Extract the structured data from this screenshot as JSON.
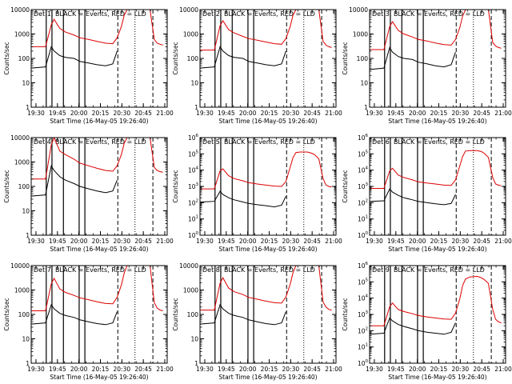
{
  "figure": {
    "start_label": "Start Time (16-May-05 19:26:40)",
    "ylabel": "Counts/sec"
  },
  "chart_data": [
    {
      "type": "line",
      "title": "Det 1, BLACK = Events, RED = LLD",
      "xlabel": "Start Time (16-May-05 19:26:40)",
      "ylabel": "Counts/sec",
      "ylim": [
        1,
        10000
      ],
      "log_y": true,
      "ytick_style": "plain",
      "x_ticks": [
        "19:30",
        "19:45",
        "20:00",
        "20:15",
        "20:30",
        "20:45",
        "21:00"
      ],
      "series": [
        {
          "name": "Events",
          "color": "#000000",
          "x": [
            0,
            10,
            14,
            16,
            20,
            24,
            30,
            34,
            40,
            46,
            52,
            57,
            60
          ],
          "y": [
            40,
            45,
            300,
            200,
            130,
            110,
            100,
            75,
            65,
            55,
            50,
            60,
            200
          ]
        },
        {
          "name": "LLD",
          "color": "#dd0000",
          "x": [
            0,
            10,
            14,
            16,
            20,
            24,
            30,
            34,
            40,
            46,
            52,
            57,
            60,
            63,
            65,
            67,
            70,
            75,
            78,
            80,
            83,
            86,
            88,
            90,
            92
          ],
          "y": [
            300,
            300,
            2400,
            4000,
            1700,
            1200,
            900,
            700,
            600,
            500,
            420,
            400,
            700,
            2000,
            6000,
            10000,
            10000,
            10000,
            10000,
            10000,
            10000,
            600,
            420,
            380,
            350
          ]
        }
      ]
    },
    {
      "type": "line",
      "title": "Det 2, BLACK = Events, RED = LLD",
      "xlabel": "Start Time (16-May-05 19:26:40)",
      "ylabel": "Counts/sec",
      "ylim": [
        1,
        10000
      ],
      "log_y": true,
      "ytick_style": "plain",
      "x_ticks": [
        "19:30",
        "19:45",
        "20:00",
        "20:15",
        "20:30",
        "20:45",
        "21:00"
      ],
      "series": [
        {
          "name": "Events",
          "color": "#000000",
          "x": [
            0,
            10,
            14,
            16,
            20,
            24,
            30,
            34,
            40,
            46,
            52,
            57,
            60
          ],
          "y": [
            40,
            45,
            300,
            200,
            130,
            110,
            100,
            75,
            65,
            55,
            50,
            60,
            200
          ]
        },
        {
          "name": "LLD",
          "color": "#dd0000",
          "x": [
            0,
            10,
            14,
            16,
            20,
            24,
            30,
            34,
            40,
            46,
            52,
            57,
            60,
            63,
            65,
            67,
            70,
            75,
            78,
            80,
            83,
            86,
            88,
            90,
            92
          ],
          "y": [
            220,
            220,
            2200,
            3500,
            1500,
            1100,
            800,
            650,
            560,
            470,
            400,
            380,
            650,
            2000,
            6000,
            10000,
            10000,
            10000,
            10000,
            10000,
            10000,
            500,
            350,
            300,
            280
          ]
        }
      ]
    },
    {
      "type": "line",
      "title": "Det 3, BLACK = Events, RED = LLD",
      "xlabel": "Start Time (16-May-05 19:26:40)",
      "ylabel": "Counts/sec",
      "ylim": [
        1,
        10000
      ],
      "log_y": true,
      "ytick_style": "plain",
      "x_ticks": [
        "19:30",
        "19:45",
        "20:00",
        "20:15",
        "20:30",
        "20:45",
        "21:00"
      ],
      "series": [
        {
          "name": "Events",
          "color": "#000000",
          "x": [
            0,
            10,
            14,
            16,
            20,
            24,
            30,
            34,
            40,
            46,
            52,
            57,
            60
          ],
          "y": [
            35,
            40,
            280,
            180,
            120,
            100,
            90,
            70,
            60,
            50,
            45,
            55,
            180
          ]
        },
        {
          "name": "LLD",
          "color": "#dd0000",
          "x": [
            0,
            10,
            14,
            16,
            20,
            24,
            30,
            34,
            40,
            46,
            52,
            57,
            60,
            63,
            65,
            67,
            70,
            75,
            78,
            80,
            83,
            86,
            88,
            90,
            92
          ],
          "y": [
            230,
            230,
            2000,
            3200,
            1400,
            1000,
            750,
            600,
            520,
            430,
            370,
            350,
            600,
            1800,
            5500,
            10000,
            10000,
            10000,
            10000,
            10000,
            10000,
            450,
            320,
            280,
            260
          ]
        }
      ]
    },
    {
      "type": "line",
      "title": "Det 4, BLACK = Events, RED = LLD",
      "xlabel": "Start Time (16-May-05 19:26:40)",
      "ylabel": "Counts/sec",
      "ylim": [
        1,
        10000
      ],
      "log_y": true,
      "ytick_style": "plain",
      "x_ticks": [
        "19:30",
        "19:45",
        "20:00",
        "20:15",
        "20:30",
        "20:45",
        "21:00"
      ],
      "series": [
        {
          "name": "Events",
          "color": "#000000",
          "x": [
            0,
            10,
            14,
            16,
            20,
            24,
            30,
            34,
            40,
            46,
            52,
            57,
            60
          ],
          "y": [
            40,
            45,
            700,
            450,
            250,
            180,
            130,
            100,
            80,
            65,
            55,
            65,
            180
          ]
        },
        {
          "name": "LLD",
          "color": "#dd0000",
          "x": [
            0,
            10,
            14,
            16,
            20,
            24,
            30,
            34,
            40,
            46,
            52,
            57,
            60,
            63,
            65,
            67,
            70,
            75,
            78,
            80,
            83,
            86,
            88,
            90,
            92
          ],
          "y": [
            200,
            200,
            5000,
            10000,
            2800,
            2000,
            1300,
            900,
            700,
            550,
            450,
            420,
            700,
            2000,
            6000,
            10000,
            10000,
            10000,
            10000,
            10000,
            10000,
            600,
            450,
            400,
            380
          ]
        }
      ]
    },
    {
      "type": "line",
      "title": "Det 5, BLACK = Events, RED = LLD",
      "xlabel": "Start Time (16-May-05 19:26:40)",
      "ylabel": "Counts/sec",
      "ylim": [
        1,
        1000000
      ],
      "log_y": true,
      "ytick_style": "power",
      "x_ticks": [
        "19:30",
        "19:45",
        "20:00",
        "20:15",
        "20:30",
        "20:45",
        "21:00"
      ],
      "series": [
        {
          "name": "Events",
          "color": "#000000",
          "x": [
            0,
            10,
            14,
            16,
            20,
            24,
            30,
            34,
            40,
            46,
            52,
            57,
            60
          ],
          "y": [
            110,
            120,
            500,
            320,
            200,
            150,
            110,
            90,
            75,
            65,
            55,
            70,
            250
          ]
        },
        {
          "name": "LLD",
          "color": "#dd0000",
          "x": [
            0,
            10,
            14,
            16,
            20,
            24,
            30,
            34,
            40,
            46,
            52,
            57,
            60,
            63,
            65,
            67,
            70,
            75,
            78,
            80,
            83,
            86,
            88,
            90,
            92
          ],
          "y": [
            700,
            700,
            9000,
            12000,
            4500,
            3000,
            2200,
            1700,
            1400,
            1200,
            1050,
            1000,
            2000,
            15000,
            60000,
            120000,
            130000,
            130000,
            110000,
            90000,
            50000,
            3000,
            1200,
            1000,
            900
          ]
        }
      ]
    },
    {
      "type": "line",
      "title": "Det 6, BLACK = Events, RED = LLD",
      "xlabel": "Start Time (16-May-05 19:26:40)",
      "ylabel": "Counts/sec",
      "ylim": [
        1,
        1000000
      ],
      "log_y": true,
      "ytick_style": "power",
      "x_ticks": [
        "19:30",
        "19:45",
        "20:00",
        "20:15",
        "20:30",
        "20:45",
        "21:00"
      ],
      "series": [
        {
          "name": "Events",
          "color": "#000000",
          "x": [
            0,
            10,
            14,
            16,
            20,
            24,
            30,
            34,
            40,
            46,
            52,
            57,
            60
          ],
          "y": [
            120,
            130,
            700,
            450,
            280,
            200,
            150,
            120,
            100,
            85,
            75,
            90,
            320
          ]
        },
        {
          "name": "LLD",
          "color": "#dd0000",
          "x": [
            0,
            10,
            14,
            16,
            20,
            24,
            30,
            34,
            40,
            46,
            52,
            57,
            60,
            63,
            65,
            67,
            70,
            75,
            78,
            80,
            83,
            86,
            88,
            90,
            92
          ],
          "y": [
            750,
            750,
            9000,
            13000,
            5000,
            3500,
            2500,
            1900,
            1600,
            1400,
            1200,
            1150,
            2500,
            18000,
            70000,
            150000,
            160000,
            160000,
            140000,
            110000,
            60000,
            3500,
            1400,
            1200,
            1100
          ]
        }
      ]
    },
    {
      "type": "line",
      "title": "Det 7, BLACK = Events, RED = LLD",
      "xlabel": "Start Time (16-May-05 19:26:40)",
      "ylabel": "Counts/sec",
      "ylim": [
        1,
        10000
      ],
      "log_y": true,
      "ytick_style": "plain",
      "x_ticks": [
        "19:30",
        "19:45",
        "20:00",
        "20:15",
        "20:30",
        "20:45",
        "21:00"
      ],
      "series": [
        {
          "name": "Events",
          "color": "#000000",
          "x": [
            0,
            10,
            14,
            16,
            20,
            24,
            30,
            34,
            40,
            46,
            52,
            57,
            60
          ],
          "y": [
            40,
            45,
            250,
            170,
            110,
            90,
            75,
            60,
            50,
            42,
            38,
            45,
            130
          ]
        },
        {
          "name": "LLD",
          "color": "#dd0000",
          "x": [
            0,
            10,
            14,
            16,
            20,
            24,
            30,
            34,
            40,
            46,
            52,
            57,
            60,
            63,
            65,
            67,
            70,
            75,
            78,
            80,
            83,
            86,
            88,
            90,
            92
          ],
          "y": [
            140,
            140,
            1800,
            3000,
            1100,
            800,
            600,
            480,
            400,
            330,
            280,
            270,
            500,
            1600,
            5000,
            10000,
            10000,
            10000,
            10000,
            10000,
            10000,
            300,
            180,
            150,
            140
          ]
        }
      ]
    },
    {
      "type": "line",
      "title": "Det 8, BLACK = Events, RED = LLD",
      "xlabel": "Start Time (16-May-05 19:26:40)",
      "ylabel": "Counts/sec",
      "ylim": [
        1,
        10000
      ],
      "log_y": true,
      "ytick_style": "plain",
      "x_ticks": [
        "19:30",
        "19:45",
        "20:00",
        "20:15",
        "20:30",
        "20:45",
        "21:00"
      ],
      "series": [
        {
          "name": "Events",
          "color": "#000000",
          "x": [
            0,
            10,
            14,
            16,
            20,
            24,
            30,
            34,
            40,
            46,
            52,
            57,
            60
          ],
          "y": [
            40,
            45,
            250,
            170,
            110,
            90,
            75,
            60,
            50,
            42,
            38,
            45,
            130
          ]
        },
        {
          "name": "LLD",
          "color": "#dd0000",
          "x": [
            0,
            10,
            14,
            16,
            20,
            24,
            30,
            34,
            40,
            46,
            52,
            57,
            60,
            63,
            65,
            67,
            70,
            75,
            78,
            80,
            83,
            86,
            88,
            90,
            92
          ],
          "y": [
            150,
            150,
            1900,
            3200,
            1200,
            850,
            650,
            500,
            420,
            350,
            300,
            290,
            520,
            1700,
            5200,
            10000,
            10000,
            10000,
            10000,
            10000,
            10000,
            320,
            200,
            160,
            150
          ]
        }
      ]
    },
    {
      "type": "line",
      "title": "Det 9, BLACK = Events, RED = LLD",
      "xlabel": "Start Time (16-May-05 19:26:40)",
      "ylabel": "Counts/sec",
      "ylim": [
        1,
        1000000
      ],
      "log_y": true,
      "ytick_style": "power",
      "x_ticks": [
        "19:30",
        "19:45",
        "20:00",
        "20:15",
        "20:30",
        "20:45",
        "21:00"
      ],
      "series": [
        {
          "name": "Events",
          "color": "#000000",
          "x": [
            0,
            10,
            14,
            16,
            20,
            24,
            30,
            34,
            40,
            46,
            52,
            57,
            60
          ],
          "y": [
            60,
            70,
            600,
            400,
            240,
            180,
            130,
            100,
            80,
            70,
            60,
            80,
            300
          ]
        },
        {
          "name": "LLD",
          "color": "#dd0000",
          "x": [
            0,
            10,
            14,
            16,
            20,
            24,
            30,
            34,
            40,
            46,
            52,
            57,
            60,
            63,
            65,
            67,
            70,
            75,
            78,
            80,
            83,
            86,
            88,
            90,
            92
          ],
          "y": [
            200,
            200,
            3000,
            5000,
            2000,
            1500,
            1100,
            850,
            700,
            600,
            520,
            500,
            1200,
            9000,
            60000,
            150000,
            200000,
            220000,
            180000,
            140000,
            80000,
            2000,
            500,
            350,
            300
          ]
        }
      ]
    }
  ]
}
